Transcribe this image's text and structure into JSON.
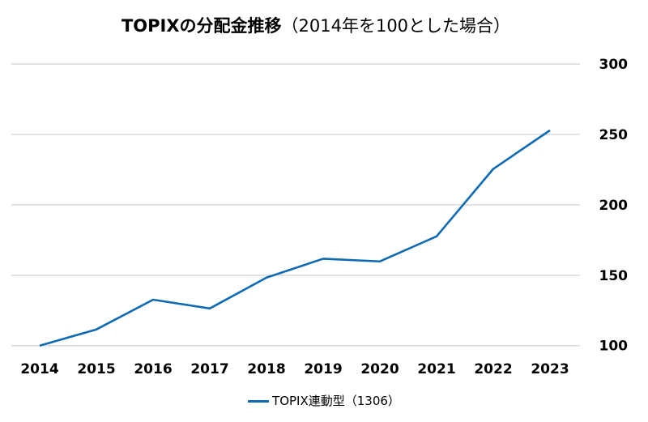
{
  "chart_data": {
    "type": "line",
    "title_bold": "TOPIXの分配金推移",
    "title_rest": "（2014年を100とした場合）",
    "categories": [
      "2014",
      "2015",
      "2016",
      "2017",
      "2018",
      "2019",
      "2020",
      "2021",
      "2022",
      "2023"
    ],
    "series": [
      {
        "name": "TOPIX連動型（1306）",
        "color": "#0f6ab4",
        "values": [
          100,
          111.5,
          132.6,
          126.4,
          148.3,
          161.7,
          159.8,
          177.6,
          225.5,
          252.9
        ]
      }
    ],
    "ylim": [
      100,
      300
    ],
    "yticks": [
      "100",
      "150",
      "200",
      "250",
      "300"
    ],
    "yaxis_side": "right",
    "grid": true,
    "legend": "bottom"
  }
}
